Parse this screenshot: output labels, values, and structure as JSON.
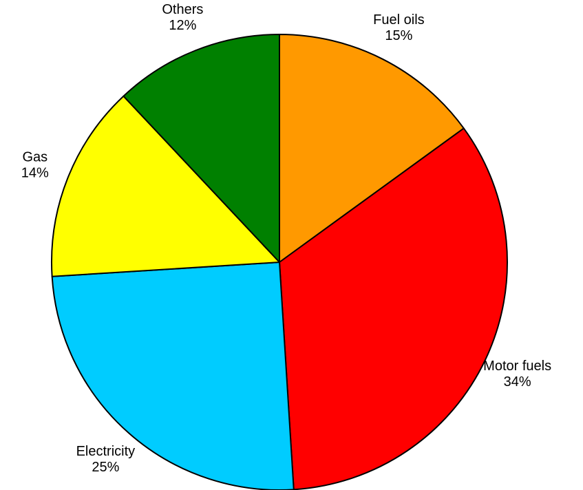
{
  "chart_data": {
    "type": "pie",
    "categories": [
      "Fuel oils",
      "Motor fuels",
      "Electricity",
      "Gas",
      "Others"
    ],
    "values": [
      15,
      34,
      25,
      14,
      12
    ],
    "value_labels": [
      "15%",
      "34%",
      "25%",
      "14%",
      "12%"
    ],
    "colors": [
      "#ff9900",
      "#ff0000",
      "#00ccff",
      "#ffff00",
      "#008000"
    ]
  }
}
